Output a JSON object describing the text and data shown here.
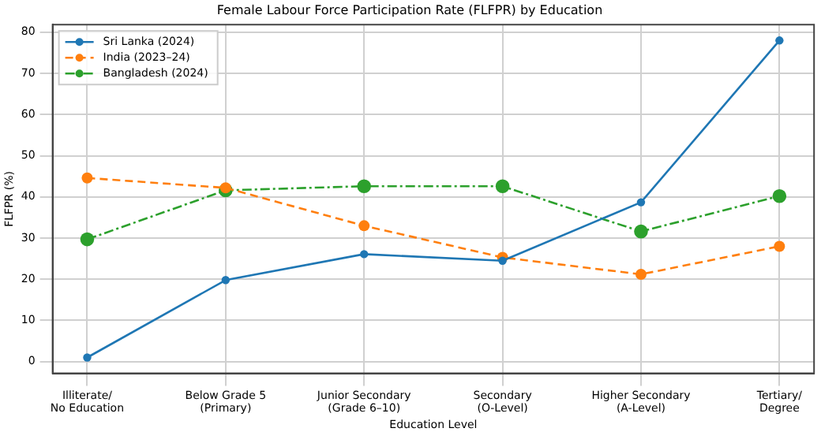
{
  "chart_data": {
    "type": "line",
    "title": "Female Labour Force Participation Rate (FLFPR) by Education",
    "xlabel": "Education Level",
    "ylabel": "FLFPR (%)",
    "categories": [
      "Illiterate/\nNo Education",
      "Below Grade 5\n(Primary)",
      "Junior Secondary\n(Grade 6–10)",
      "Secondary\n(O-Level)",
      "Higher Secondary\n(A-Level)",
      "Tertiary/\nDegree"
    ],
    "series": [
      {
        "name": "Sri Lanka (2024)",
        "color": "#1f77b4",
        "line_style": "solid",
        "values": [
          1,
          19.8,
          26.1,
          24.5,
          38.7,
          78
        ]
      },
      {
        "name": "India (2023–24)",
        "color": "#ff7f0e",
        "line_style": "dashed",
        "values": [
          44.6,
          42.2,
          33,
          25.3,
          21.2,
          28
        ]
      },
      {
        "name": "Bangladesh (2024)",
        "color": "#2ca02c",
        "line_style": "dashdot",
        "values": [
          29.7,
          41.6,
          42.6,
          42.6,
          31.6,
          40.2
        ]
      }
    ],
    "ylim": [
      -2.85,
      81.85
    ],
    "yticks": [
      0,
      10,
      20,
      30,
      40,
      50,
      60,
      70,
      80
    ],
    "grid": true,
    "legend": "top left",
    "marker": "circle"
  }
}
